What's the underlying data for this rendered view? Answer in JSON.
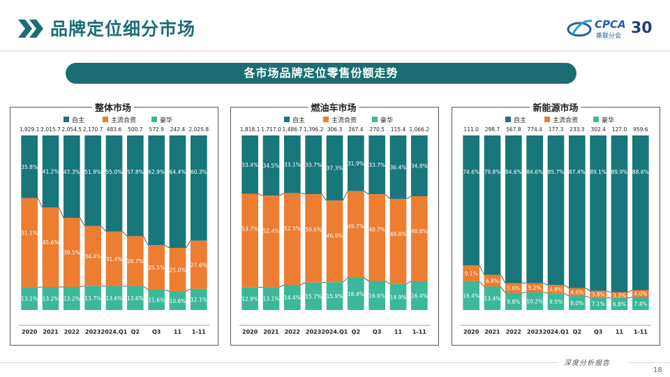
{
  "header": {
    "title": "品牌定位细分市场",
    "logo_brand": "CPCA",
    "logo_sub": "乘联分会",
    "logo_anniv": "30"
  },
  "banner": {
    "title": "各市场品牌定位零售份额走势"
  },
  "colors": {
    "own": "#17777b",
    "mainstream": "#ed7d31",
    "luxury": "#3bb89a"
  },
  "footer": {
    "text": "深度分析报告",
    "page": "18"
  },
  "chart_data": [
    {
      "type": "bar",
      "title": "整体市场",
      "categories": [
        "2020",
        "2021",
        "2022",
        "2023",
        "2024.Q1",
        "Q2",
        "Q3",
        "11",
        "1-11"
      ],
      "totals": [
        "1,929.1",
        "2,015.7",
        "2,054.5",
        "2,170.7",
        "483.6",
        "500.7",
        "572.9",
        "242.4",
        "2,025.8"
      ],
      "series": [
        {
          "name": "自主",
          "values": [
            35.8,
            41.2,
            47.3,
            51.9,
            55.0,
            57.8,
            62.9,
            64.4,
            60.3
          ]
        },
        {
          "name": "主流合资",
          "values": [
            51.1,
            45.6,
            39.5,
            34.4,
            31.4,
            28.7,
            25.5,
            25.0,
            27.6
          ]
        },
        {
          "name": "豪华",
          "values": [
            13.1,
            13.2,
            13.2,
            13.7,
            13.6,
            13.6,
            11.6,
            10.6,
            12.1
          ]
        }
      ]
    },
    {
      "type": "bar",
      "title": "燃油车市场",
      "categories": [
        "2020",
        "2021",
        "2022",
        "2023",
        "2024.Q1",
        "Q2",
        "Q3",
        "11",
        "1-11"
      ],
      "totals": [
        "1,818.1",
        "1,717.0",
        "1,486.7",
        "1,396.2",
        "306.3",
        "267.4",
        "270.5",
        "115.4",
        "1,066.2"
      ],
      "series": [
        {
          "name": "自主",
          "values": [
            33.4,
            34.5,
            33.1,
            33.7,
            37.3,
            31.9,
            33.7,
            36.4,
            34.8
          ]
        },
        {
          "name": "主流合资",
          "values": [
            53.7,
            52.4,
            52.5,
            50.6,
            46.8,
            49.7,
            49.7,
            48.8,
            48.8
          ]
        },
        {
          "name": "豪华",
          "values": [
            12.9,
            13.1,
            14.4,
            15.7,
            15.9,
            18.4,
            16.6,
            14.9,
            16.4
          ]
        }
      ]
    },
    {
      "type": "bar",
      "title": "新能源市场",
      "categories": [
        "2020",
        "2021",
        "2022",
        "2023",
        "2024.Q1",
        "Q2",
        "Q3",
        "11",
        "1-11"
      ],
      "totals": [
        "111.0",
        "298.7",
        "567.8",
        "774.4",
        "177.3",
        "233.3",
        "302.4",
        "127.0",
        "959.6"
      ],
      "series": [
        {
          "name": "自主",
          "values": [
            74.6,
            79.8,
            84.6,
            84.6,
            85.7,
            87.4,
            89.1,
            89.9,
            88.6
          ]
        },
        {
          "name": "主流合资",
          "values": [
            9.1,
            6.8,
            5.6,
            5.2,
            4.8,
            4.6,
            3.8,
            3.3,
            4.0
          ]
        },
        {
          "name": "豪华",
          "values": [
            16.4,
            13.4,
            9.8,
            10.2,
            9.5,
            8.0,
            7.1,
            6.8,
            7.4
          ]
        }
      ]
    }
  ]
}
